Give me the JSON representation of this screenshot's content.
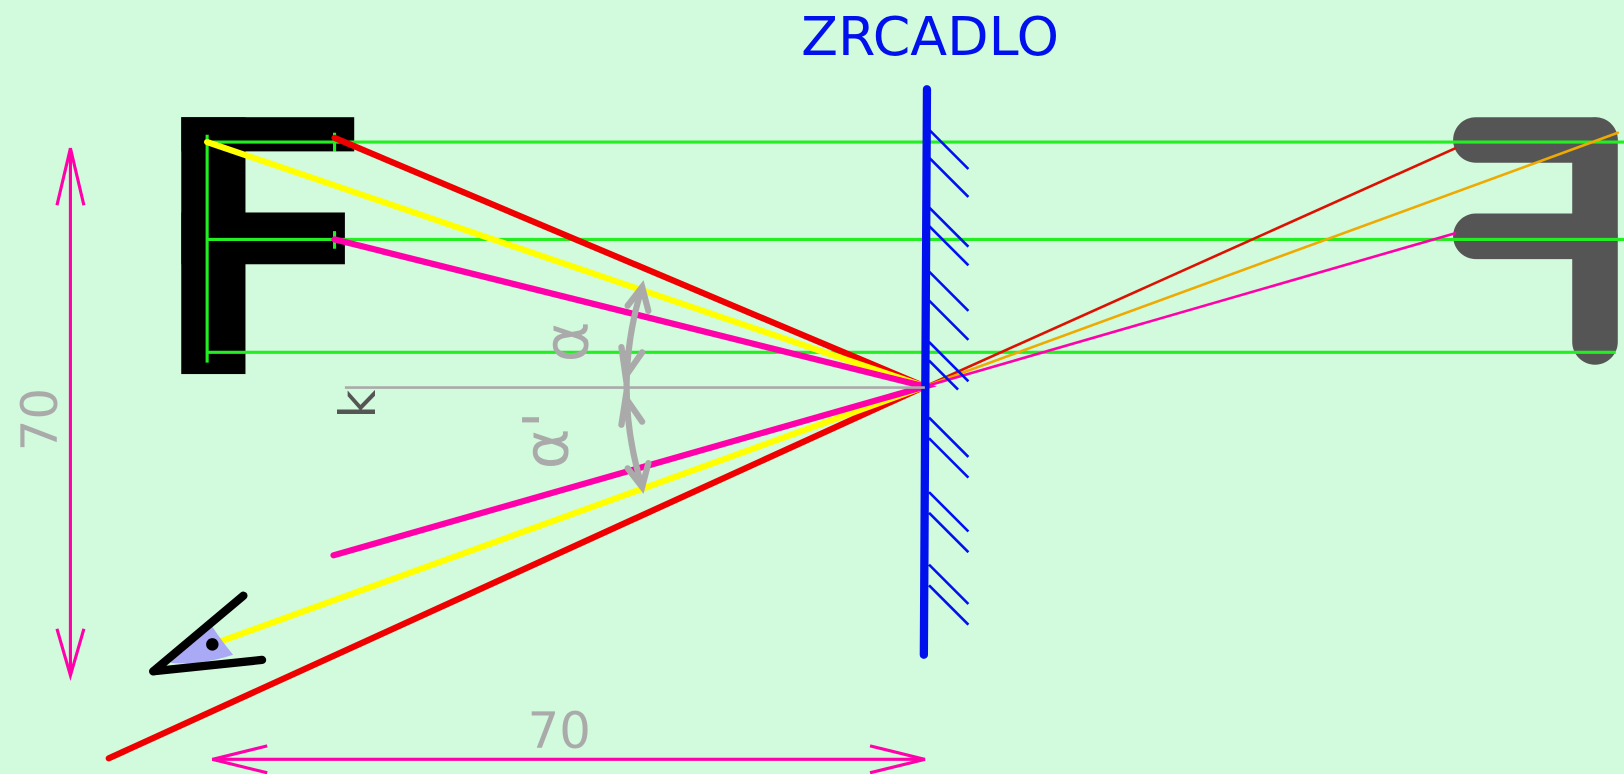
{
  "title": "ZRCADLO",
  "labels": {
    "normal": "k",
    "angle_incidence": "α",
    "angle_reflection": "α'",
    "dimension_vertical": "70",
    "dimension_horizontal": "70"
  }
}
